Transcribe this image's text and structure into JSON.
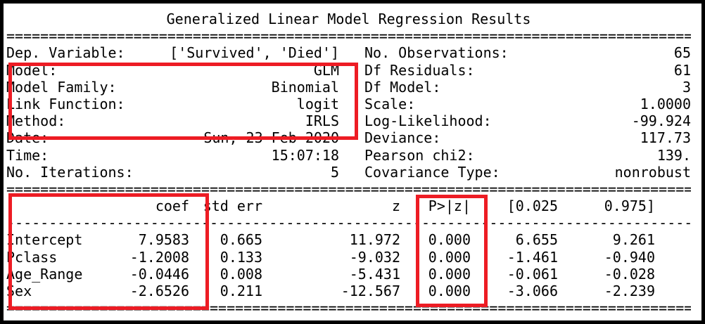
{
  "title": "Generalized Linear Model Regression Results",
  "rules": {
    "double": "==================================================================================",
    "dashed": "----------------------------------------------------------------------------------"
  },
  "info": {
    "left": [
      {
        "label": "Dep. Variable:",
        "value": "['Survived', 'Died']"
      },
      {
        "label": "Model:",
        "value": "GLM"
      },
      {
        "label": "Model Family:",
        "value": "Binomial"
      },
      {
        "label": "Link Function:",
        "value": "logit"
      },
      {
        "label": "Method:",
        "value": "IRLS"
      },
      {
        "label": "Date:",
        "value": "Sun, 23 Feb 2020"
      },
      {
        "label": "Time:",
        "value": "15:07:18"
      },
      {
        "label": "No. Iterations:",
        "value": "5"
      }
    ],
    "right": [
      {
        "label": "No. Observations:",
        "value": "65"
      },
      {
        "label": "Df Residuals:",
        "value": "61"
      },
      {
        "label": "Df Model:",
        "value": "3"
      },
      {
        "label": "Scale:",
        "value": "1.0000"
      },
      {
        "label": "Log-Likelihood:",
        "value": "-99.924"
      },
      {
        "label": "Deviance:",
        "value": "117.73"
      },
      {
        "label": "Pearson chi2:",
        "value": "139."
      },
      {
        "label": "Covariance Type:",
        "value": "nonrobust"
      }
    ]
  },
  "coef_table": {
    "headers": {
      "name": "",
      "coef": "coef",
      "std_err": "std err",
      "z": "z",
      "p": "P>|z|",
      "ci_low": "[0.025",
      "ci_high": "0.975]"
    },
    "rows": [
      {
        "name": "Intercept",
        "coef": "7.9583",
        "std_err": "0.665",
        "z": "11.972",
        "p": "0.000",
        "ci_low": "6.655",
        "ci_high": "9.261"
      },
      {
        "name": "Pclass",
        "coef": "-1.2008",
        "std_err": "0.133",
        "z": "-9.032",
        "p": "0.000",
        "ci_low": "-1.461",
        "ci_high": "-0.940"
      },
      {
        "name": "Age_Range",
        "coef": "-0.0446",
        "std_err": "0.008",
        "z": "-5.431",
        "p": "0.000",
        "ci_low": "-0.061",
        "ci_high": "-0.028"
      },
      {
        "name": "Sex",
        "coef": "-2.6526",
        "std_err": "0.211",
        "z": "-12.567",
        "p": "0.000",
        "ci_low": "-3.066",
        "ci_high": "-2.239"
      }
    ]
  },
  "annotations": {
    "highlight_color": "#ED1C24",
    "boxes": [
      "model-info-highlight",
      "coefficients-highlight",
      "p-values-highlight"
    ]
  }
}
